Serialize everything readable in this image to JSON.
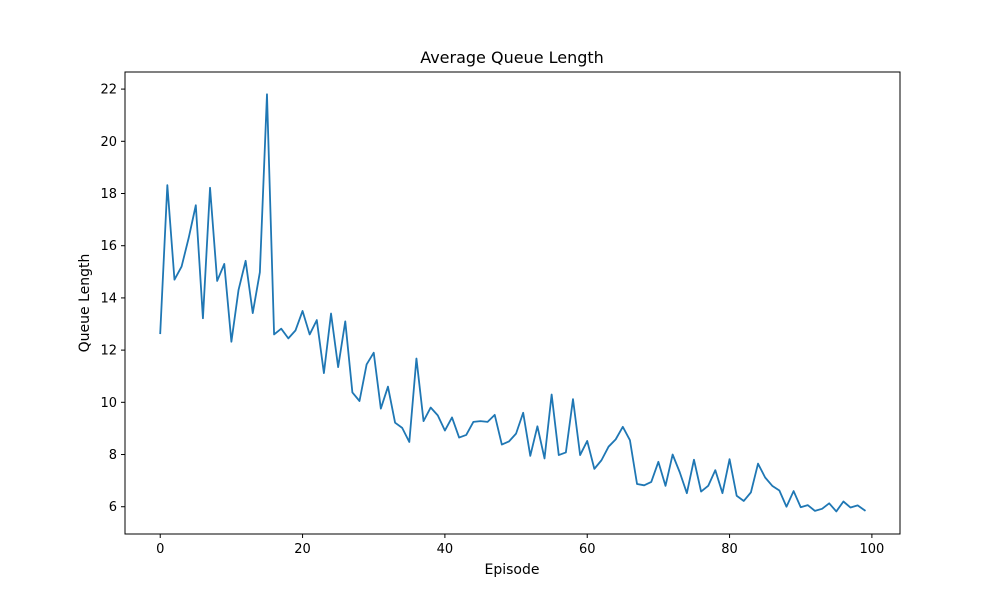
{
  "chart_data": {
    "type": "line",
    "title": "Average Queue Length",
    "xlabel": "Episode",
    "ylabel": "Queue Length",
    "xlim": [
      -4.95,
      103.95
    ],
    "ylim": [
      4.955,
      22.655
    ],
    "x_ticks": [
      0,
      20,
      40,
      60,
      80,
      100
    ],
    "y_ticks": [
      6,
      8,
      10,
      12,
      14,
      16,
      18,
      20,
      22
    ],
    "grid": false,
    "legend": "none",
    "line_color": "#1f77b4",
    "x": [
      0,
      1,
      2,
      3,
      4,
      5,
      6,
      7,
      8,
      9,
      10,
      11,
      12,
      13,
      14,
      15,
      16,
      17,
      18,
      19,
      20,
      21,
      22,
      23,
      24,
      25,
      26,
      27,
      28,
      29,
      30,
      31,
      32,
      33,
      34,
      35,
      36,
      37,
      38,
      39,
      40,
      41,
      42,
      43,
      44,
      45,
      46,
      47,
      48,
      49,
      50,
      51,
      52,
      53,
      54,
      55,
      56,
      57,
      58,
      59,
      60,
      61,
      62,
      63,
      64,
      65,
      66,
      67,
      68,
      69,
      70,
      71,
      72,
      73,
      74,
      75,
      76,
      77,
      78,
      79,
      80,
      81,
      82,
      83,
      84,
      85,
      86,
      87,
      88,
      89,
      90,
      91,
      92,
      93,
      94,
      95,
      96,
      97,
      98,
      99
    ],
    "y": [
      12.65,
      18.32,
      14.7,
      15.2,
      16.3,
      17.55,
      13.22,
      18.22,
      14.65,
      15.3,
      12.32,
      14.3,
      15.42,
      13.42,
      14.98,
      21.8,
      12.6,
      12.82,
      12.45,
      12.75,
      13.5,
      12.6,
      13.15,
      11.12,
      13.4,
      11.35,
      13.1,
      10.38,
      10.05,
      11.45,
      11.9,
      9.76,
      10.6,
      9.22,
      9.02,
      8.48,
      11.68,
      9.28,
      9.8,
      9.5,
      8.92,
      9.42,
      8.65,
      8.75,
      9.25,
      9.28,
      9.25,
      9.52,
      8.38,
      8.5,
      8.8,
      9.6,
      7.95,
      9.08,
      7.85,
      10.3,
      7.98,
      8.08,
      10.12,
      7.98,
      8.52,
      7.45,
      7.78,
      8.3,
      8.58,
      9.06,
      8.55,
      6.87,
      6.82,
      6.95,
      7.72,
      6.8,
      8.0,
      7.32,
      6.52,
      7.8,
      6.58,
      6.8,
      7.4,
      6.52,
      7.82,
      6.42,
      6.22,
      6.55,
      7.65,
      7.12,
      6.8,
      6.62,
      6.0,
      6.6,
      5.98,
      6.06,
      5.84,
      5.92,
      6.13,
      5.82,
      6.2,
      5.97,
      6.05,
      5.86
    ]
  }
}
